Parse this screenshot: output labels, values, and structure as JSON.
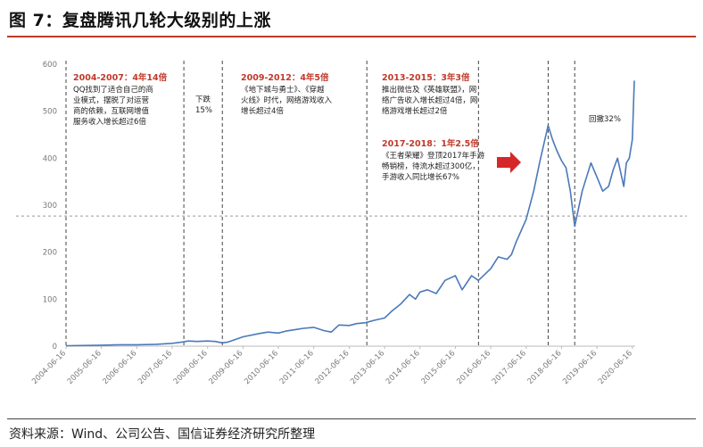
{
  "header": {
    "title": "图 7：复盘腾讯几轮大级别的上涨"
  },
  "footer": {
    "source": "资料来源：Wind、公司公告、国信证券经济研究所整理"
  },
  "colors": {
    "line": "#4a79b9",
    "accent": "#c0392b",
    "divider": "#444444",
    "arrow": "#d62728"
  },
  "chart_data": {
    "type": "line",
    "title": "",
    "xlabel": "",
    "ylabel": "",
    "ylim": [
      0,
      600
    ],
    "yticks": [
      0,
      100,
      200,
      300,
      400,
      500,
      600
    ],
    "xticks": [
      "2004-06-16",
      "2005-06-16",
      "2006-06-16",
      "2007-06-16",
      "2008-06-16",
      "2009-06-16",
      "2010-06-16",
      "2011-06-16",
      "2012-06-16",
      "2013-06-16",
      "2014-06-16",
      "2015-06-16",
      "2016-06-16",
      "2017-06-16",
      "2018-06-16",
      "2019-06-16",
      "2020-06-16"
    ],
    "reference_line": 277,
    "series": [
      {
        "name": "",
        "points": [
          [
            "2004-06-16",
            1
          ],
          [
            "2005-06-16",
            2
          ],
          [
            "2006-01-01",
            3
          ],
          [
            "2006-06-16",
            3
          ],
          [
            "2007-01-01",
            4
          ],
          [
            "2007-06-16",
            6
          ],
          [
            "2007-10-01",
            9
          ],
          [
            "2007-12-01",
            11
          ],
          [
            "2008-03-01",
            10
          ],
          [
            "2008-06-16",
            11
          ],
          [
            "2008-09-01",
            10
          ],
          [
            "2008-11-15",
            7
          ],
          [
            "2009-01-15",
            9
          ],
          [
            "2009-06-16",
            20
          ],
          [
            "2009-12-01",
            27
          ],
          [
            "2010-03-01",
            30
          ],
          [
            "2010-06-16",
            28
          ],
          [
            "2010-09-01",
            32
          ],
          [
            "2010-12-01",
            35
          ],
          [
            "2011-03-01",
            38
          ],
          [
            "2011-06-16",
            40
          ],
          [
            "2011-10-01",
            33
          ],
          [
            "2011-12-15",
            30
          ],
          [
            "2012-03-01",
            45
          ],
          [
            "2012-06-16",
            44
          ],
          [
            "2012-09-01",
            48
          ],
          [
            "2012-12-01",
            50
          ],
          [
            "2013-03-01",
            55
          ],
          [
            "2013-06-16",
            60
          ],
          [
            "2013-09-01",
            75
          ],
          [
            "2013-12-01",
            90
          ],
          [
            "2014-03-01",
            110
          ],
          [
            "2014-05-01",
            100
          ],
          [
            "2014-06-16",
            115
          ],
          [
            "2014-09-01",
            120
          ],
          [
            "2014-12-01",
            112
          ],
          [
            "2015-03-01",
            140
          ],
          [
            "2015-06-16",
            150
          ],
          [
            "2015-08-25",
            120
          ],
          [
            "2015-12-01",
            150
          ],
          [
            "2016-02-10",
            140
          ],
          [
            "2016-06-16",
            165
          ],
          [
            "2016-09-01",
            190
          ],
          [
            "2016-12-01",
            185
          ],
          [
            "2017-01-15",
            195
          ],
          [
            "2017-03-01",
            220
          ],
          [
            "2017-06-16",
            270
          ],
          [
            "2017-09-01",
            330
          ],
          [
            "2017-11-01",
            390
          ],
          [
            "2018-01-29",
            470
          ],
          [
            "2018-03-15",
            440
          ],
          [
            "2018-05-01",
            415
          ],
          [
            "2018-06-16",
            395
          ],
          [
            "2018-08-01",
            380
          ],
          [
            "2018-09-15",
            330
          ],
          [
            "2018-10-30",
            255
          ],
          [
            "2019-01-15",
            330
          ],
          [
            "2019-04-15",
            390
          ],
          [
            "2019-06-16",
            360
          ],
          [
            "2019-08-15",
            330
          ],
          [
            "2019-10-15",
            340
          ],
          [
            "2019-12-01",
            375
          ],
          [
            "2020-01-15",
            400
          ],
          [
            "2020-03-19",
            340
          ],
          [
            "2020-04-15",
            390
          ],
          [
            "2020-05-15",
            400
          ],
          [
            "2020-06-16",
            440
          ],
          [
            "2020-07-06",
            565
          ]
        ]
      }
    ],
    "event_lines": [
      "2004-06-16",
      "2007-10-15",
      "2008-11-15",
      "2012-12-15",
      "2016-02-10",
      "2018-01-29",
      "2018-10-30"
    ],
    "annotations": [
      {
        "title": "2004-2007：4年14倍",
        "lines": [
          "QQ找到了适合自己的商",
          "业模式，摆脱了对运营",
          "商的依赖，互联网增值",
          "服务收入增长超过6倍"
        ]
      },
      {
        "title": "",
        "lines": [
          "下跌",
          "15%"
        ]
      },
      {
        "title": "2009-2012：4年5倍",
        "lines": [
          "《地下城与勇士》、《穿越",
          "火线》时代，网络游戏收入",
          "增长超过4倍"
        ]
      },
      {
        "title": "2013-2015：3年3倍",
        "lines": [
          "推出微信及《英雄联盟》，网",
          "络广告收入增长超过4倍，网",
          "络游戏增长超过2倍"
        ]
      },
      {
        "title": "2017-2018：1年2.5倍",
        "lines": [
          "《王者荣耀》登顶2017年手游",
          "畅销榜，待流水超过300亿，",
          "手游收入同比增长67%"
        ]
      },
      {
        "title": "",
        "lines": [
          "回撤32%"
        ]
      }
    ]
  }
}
